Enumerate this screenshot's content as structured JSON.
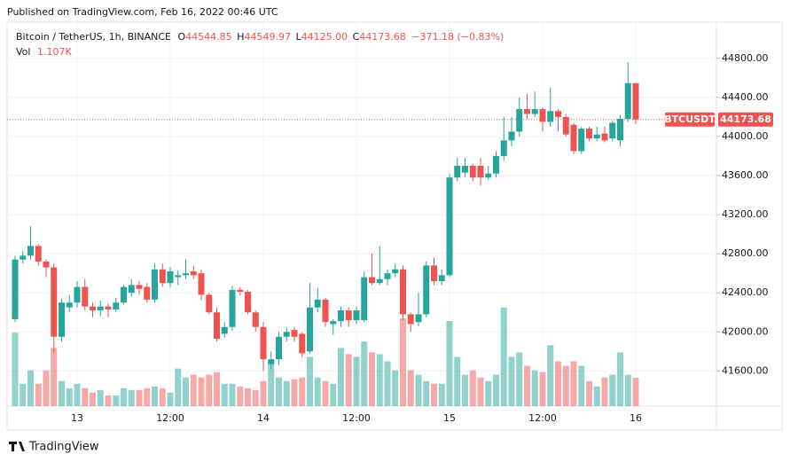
{
  "header": {
    "published": "Published on TradingView.com, Feb 16, 2022 00:46 UTC"
  },
  "footer": {
    "brand": "TradingView"
  },
  "chart_data": {
    "type": "candlestick",
    "title": "Bitcoin / TetherUS, 1h, BINANCE",
    "ohlc_legend": {
      "o_label": "O",
      "o": "44544.85",
      "h_label": "H",
      "h": "44549.97",
      "l_label": "L",
      "l": "44125.00",
      "c_label": "C",
      "c": "44173.68",
      "change": "−371.18 (−0.83%)"
    },
    "volume_legend": {
      "label": "Vol",
      "value": "1.107K"
    },
    "price_label": {
      "symbol": "BTCUSDT"
    },
    "categories": [
      null,
      null,
      null,
      null,
      null,
      null,
      null,
      null,
      "13",
      null,
      null,
      null,
      null,
      null,
      null,
      null,
      null,
      null,
      null,
      null,
      "12:00",
      null,
      null,
      null,
      null,
      null,
      null,
      null,
      null,
      null,
      null,
      null,
      "14",
      null,
      null,
      null,
      null,
      null,
      null,
      null,
      null,
      null,
      null,
      null,
      "12:00",
      null,
      null,
      null,
      null,
      null,
      null,
      null,
      null,
      null,
      null,
      null,
      "15",
      null,
      null,
      null,
      null,
      null,
      null,
      null,
      null,
      null,
      null,
      null,
      "12:00",
      null,
      null,
      null,
      null,
      null,
      null,
      null,
      null,
      null,
      null,
      null,
      "16"
    ],
    "series": [
      {
        "name": "BTCUSDT",
        "up_color": "#26a69a",
        "down_color": "#ef5350",
        "open": [
          42130,
          42740,
          42780,
          42880,
          42720,
          42660,
          41950,
          42250,
          42300,
          42460,
          42260,
          42220,
          42260,
          42230,
          42300,
          42400,
          42480,
          42460,
          42330,
          42640,
          42500,
          42560,
          42580,
          42620,
          42600,
          42380,
          42200,
          41980,
          42050,
          42430,
          42410,
          42200,
          42050,
          41670,
          41720,
          41950,
          42020,
          41980,
          41800,
          42250,
          42330,
          42080,
          42110,
          42220,
          42120,
          42120,
          42560,
          42500,
          42540,
          42600,
          42640,
          42180,
          42100,
          42180,
          42680,
          42520,
          42580,
          43580,
          43630,
          43700,
          43700,
          43580,
          43620,
          43800,
          43960,
          44050,
          44280,
          44230,
          44280,
          44150,
          44260,
          44200,
          44120,
          43850,
          44080,
          43980,
          44030,
          43980,
          43960,
          44180,
          44544.85
        ],
        "high": [
          42780,
          42830,
          43080,
          42900,
          42740,
          42700,
          42340,
          42380,
          42520,
          42540,
          42300,
          42320,
          42290,
          42350,
          42480,
          42540,
          42520,
          42500,
          42700,
          42700,
          42660,
          42630,
          42740,
          42680,
          42640,
          42400,
          42250,
          42100,
          42470,
          42460,
          42430,
          42220,
          42100,
          41800,
          42000,
          42050,
          42050,
          42000,
          42500,
          42450,
          42350,
          42130,
          42260,
          42250,
          42260,
          42620,
          42800,
          42880,
          42640,
          42700,
          42680,
          42200,
          42400,
          42720,
          42760,
          42640,
          43620,
          43780,
          43780,
          43720,
          43780,
          43700,
          43850,
          44200,
          44200,
          44400,
          44440,
          44460,
          44300,
          44500,
          44280,
          44230,
          44140,
          44100,
          44100,
          44100,
          44100,
          44160,
          44220,
          44760,
          44549.97
        ],
        "low": [
          42100,
          42700,
          42740,
          42680,
          42560,
          41780,
          41900,
          42200,
          42250,
          42220,
          42150,
          42160,
          42150,
          42200,
          42280,
          42360,
          42380,
          42300,
          42300,
          42460,
          42460,
          42480,
          42540,
          42540,
          42320,
          42180,
          41900,
          41940,
          42010,
          42370,
          42180,
          42000,
          41600,
          41620,
          41660,
          41900,
          41900,
          41740,
          41780,
          42200,
          42050,
          41970,
          42050,
          42050,
          42080,
          42100,
          42480,
          42480,
          42480,
          42560,
          42120,
          42000,
          42060,
          42150,
          42480,
          42480,
          42560,
          43540,
          43580,
          43540,
          43500,
          43560,
          43580,
          43750,
          43900,
          44000,
          44180,
          44200,
          44050,
          44100,
          44050,
          44000,
          43820,
          43820,
          43950,
          43950,
          43940,
          43950,
          43900,
          44150,
          44125
        ],
        "close": [
          42740,
          42780,
          42880,
          42720,
          42660,
          41950,
          42300,
          42300,
          42460,
          42260,
          42220,
          42260,
          42230,
          42300,
          42460,
          42480,
          42440,
          42330,
          42640,
          42500,
          42620,
          42580,
          42600,
          42580,
          42380,
          42200,
          41930,
          42050,
          42430,
          42410,
          42200,
          42050,
          41720,
          41720,
          41950,
          42000,
          41950,
          41780,
          42250,
          42330,
          42100,
          42110,
          42220,
          42120,
          42220,
          42560,
          42500,
          42540,
          42600,
          42640,
          42180,
          42080,
          42180,
          42680,
          42520,
          42580,
          43580,
          43700,
          43700,
          43580,
          43580,
          43620,
          43800,
          43960,
          44050,
          44280,
          44230,
          44280,
          44150,
          44260,
          44200,
          44020,
          43850,
          44080,
          43980,
          44020,
          43960,
          44140,
          44180,
          44545,
          44173.68
        ],
        "volume": [
          2870,
          875,
          1400,
          875,
          1400,
          2275,
          980,
          700,
          875,
          700,
          525,
          630,
          420,
          420,
          700,
          630,
          630,
          700,
          770,
          700,
          525,
          1470,
          1120,
          1225,
          1120,
          1225,
          1330,
          875,
          875,
          770,
          700,
          630,
          980,
          1750,
          1120,
          980,
          1050,
          1120,
          1925,
          1120,
          980,
          875,
          2275,
          2030,
          1925,
          2520,
          2100,
          2030,
          1750,
          1400,
          3430,
          1400,
          1225,
          980,
          875,
          875,
          3325,
          1925,
          1225,
          1400,
          1120,
          980,
          1225,
          3850,
          1925,
          2100,
          1575,
          1400,
          1330,
          2380,
          1750,
          1575,
          1750,
          1575,
          980,
          770,
          1120,
          1225,
          2100,
          1225,
          1107
        ]
      }
    ],
    "ylim": [
      41240,
      45170
    ],
    "y2lim": [
      0,
      15000
    ],
    "yticks": [
      {
        "value": 41600,
        "label": "41600.00"
      },
      {
        "value": 42000,
        "label": "42000.00"
      },
      {
        "value": 42400,
        "label": "42400.00"
      },
      {
        "value": 42800,
        "label": "42800.00"
      },
      {
        "value": 43200,
        "label": "43200.00"
      },
      {
        "value": 43600,
        "label": "43600.00"
      },
      {
        "value": 44000,
        "label": "44000.00"
      },
      {
        "value": 44400,
        "label": "44400.00"
      },
      {
        "value": 44800,
        "label": "44800.00"
      }
    ],
    "grid": true
  }
}
